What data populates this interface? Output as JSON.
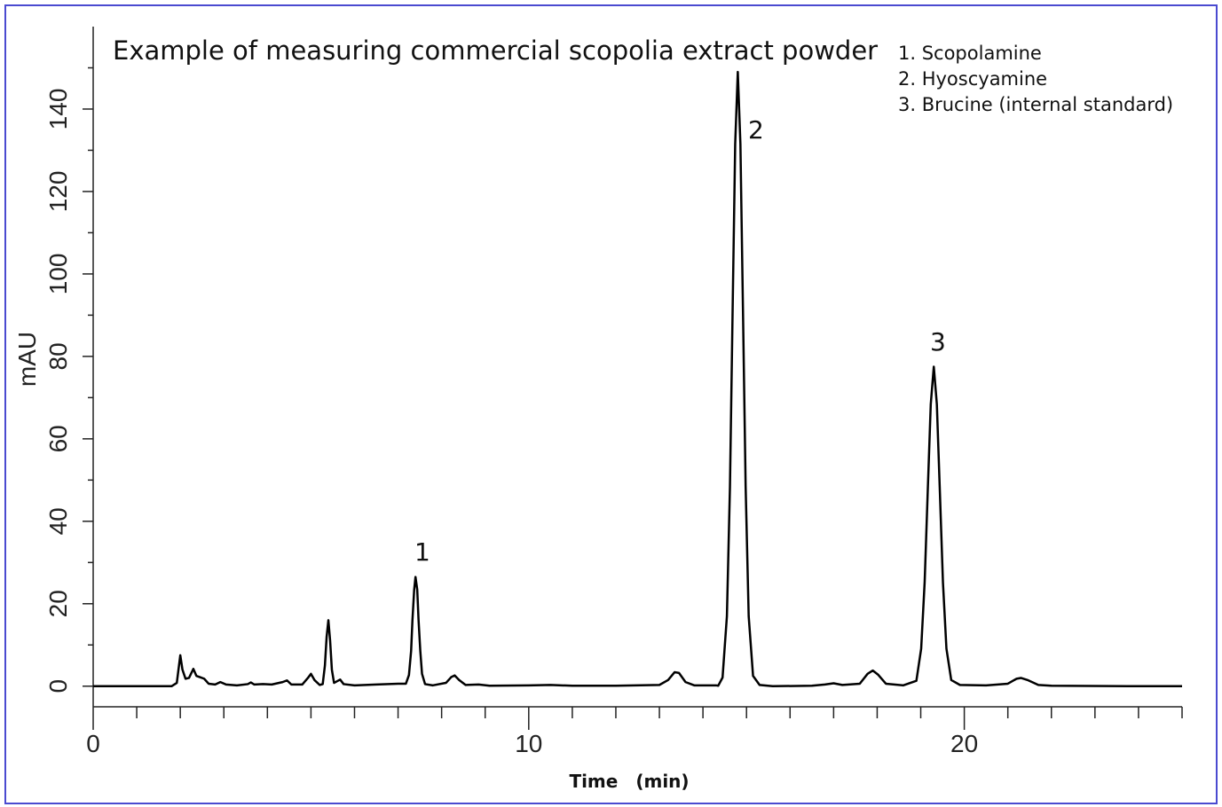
{
  "chart_data": {
    "type": "line",
    "title": "Example of measuring commercial scopolia extract powder",
    "legend_lines": [
      "1. Scopolamine",
      "2. Hyoscyamine",
      "3. Brucine (internal standard)"
    ],
    "annotations": [
      "1",
      "2",
      "3"
    ],
    "x_label": "Time　(min)",
    "y_label": "mAU",
    "xlim": [
      0,
      25
    ],
    "xticks": [
      0,
      10,
      20
    ],
    "xticks_minor": [
      1,
      2,
      3,
      4,
      5,
      6,
      7,
      8,
      9,
      11,
      12,
      13,
      14,
      15,
      16,
      17,
      18,
      19,
      21,
      22,
      23,
      24,
      25
    ],
    "ylim": [
      -5,
      160
    ],
    "yticks": [
      0,
      20,
      40,
      60,
      80,
      100,
      120,
      140
    ],
    "yticks_minor": [
      10,
      30,
      50,
      70,
      90,
      110,
      130,
      150
    ],
    "series": [
      {
        "color": "#000000",
        "x": [
          0,
          1.8,
          1.92,
          1.97,
          2.0,
          2.05,
          2.12,
          2.2,
          2.3,
          2.37,
          2.45,
          2.55,
          2.65,
          2.8,
          2.92,
          3.05,
          3.3,
          3.55,
          3.62,
          3.7,
          3.9,
          4.1,
          4.35,
          4.45,
          4.55,
          4.8,
          4.93,
          5.0,
          5.08,
          5.2,
          5.27,
          5.32,
          5.36,
          5.4,
          5.44,
          5.48,
          5.53,
          5.6,
          5.67,
          5.75,
          6.0,
          6.5,
          7.0,
          7.18,
          7.25,
          7.3,
          7.33,
          7.37,
          7.4,
          7.44,
          7.47,
          7.51,
          7.55,
          7.62,
          7.8,
          8.1,
          8.22,
          8.3,
          8.4,
          8.55,
          8.85,
          9.1,
          10,
          10.5,
          11,
          12,
          13.0,
          13.2,
          13.35,
          13.45,
          13.6,
          13.8,
          14.3,
          14.35,
          14.45,
          14.55,
          14.62,
          14.68,
          14.74,
          14.8,
          14.86,
          14.92,
          14.98,
          15.05,
          15.15,
          15.3,
          15.6,
          16.5,
          16.8,
          17.0,
          17.2,
          17.6,
          17.78,
          17.9,
          18.02,
          18.2,
          18.6,
          18.9,
          19.01,
          19.09,
          19.16,
          19.23,
          19.3,
          19.37,
          19.44,
          19.51,
          19.59,
          19.7,
          19.9,
          20.5,
          21.0,
          21.2,
          21.3,
          21.45,
          21.7,
          22,
          24,
          25
        ],
        "values": [
          0,
          0,
          0.8,
          5,
          7.5,
          4,
          1.8,
          2,
          4.2,
          2.5,
          2.2,
          1.8,
          0.6,
          0.4,
          1,
          0.4,
          0.2,
          0.5,
          0.9,
          0.4,
          0.5,
          0.4,
          1,
          1.4,
          0.4,
          0.4,
          2,
          3,
          1.5,
          0.3,
          0.5,
          5,
          12,
          16,
          11,
          4,
          0.8,
          1.2,
          1.6,
          0.5,
          0.2,
          0.4,
          0.6,
          0.6,
          2.7,
          8.6,
          16,
          23.4,
          26.5,
          23.4,
          16.1,
          8.6,
          3,
          0.5,
          0.2,
          0.8,
          2.2,
          2.6,
          1.5,
          0.3,
          0.4,
          0.1,
          0.2,
          0.3,
          0.1,
          0.1,
          0.3,
          1.5,
          3.4,
          3.2,
          1,
          0.2,
          0.2,
          0.1,
          2.1,
          17,
          48.4,
          90.4,
          131.5,
          149,
          131.5,
          90.4,
          48.4,
          17,
          2.5,
          0.3,
          0,
          0.1,
          0.4,
          0.7,
          0.3,
          0.6,
          3,
          3.8,
          2.8,
          0.6,
          0.2,
          1.3,
          9.1,
          25.2,
          47,
          68.4,
          77.5,
          68.4,
          47,
          25.2,
          9.1,
          1.5,
          0.3,
          0.2,
          0.6,
          1.8,
          2,
          1.5,
          0.3,
          0.1,
          0,
          0
        ]
      }
    ]
  }
}
